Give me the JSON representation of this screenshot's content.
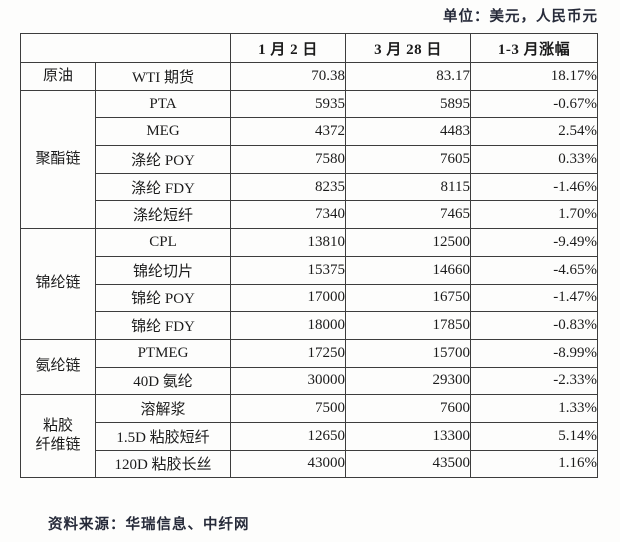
{
  "unit_note": "单位：美元，人民币元",
  "source_note": "资料来源：华瑞信息、中纤网",
  "table": {
    "col_headers": [
      "1 月 2 日",
      "3 月 28 日",
      "1-3 月涨幅"
    ],
    "groups": [
      {
        "category": "原油",
        "rows": [
          {
            "name": "WTI 期货",
            "jan2": "70.38",
            "mar28": "83.17",
            "change": "18.17%"
          }
        ]
      },
      {
        "category": "聚酯链",
        "rows": [
          {
            "name": "PTA",
            "jan2": "5935",
            "mar28": "5895",
            "change": "-0.67%"
          },
          {
            "name": "MEG",
            "jan2": "4372",
            "mar28": "4483",
            "change": "2.54%"
          },
          {
            "name": "涤纶 POY",
            "jan2": "7580",
            "mar28": "7605",
            "change": "0.33%"
          },
          {
            "name": "涤纶 FDY",
            "jan2": "8235",
            "mar28": "8115",
            "change": "-1.46%"
          },
          {
            "name": "涤纶短纤",
            "jan2": "7340",
            "mar28": "7465",
            "change": "1.70%"
          }
        ]
      },
      {
        "category": "锦纶链",
        "rows": [
          {
            "name": "CPL",
            "jan2": "13810",
            "mar28": "12500",
            "change": "-9.49%"
          },
          {
            "name": "锦纶切片",
            "jan2": "15375",
            "mar28": "14660",
            "change": "-4.65%"
          },
          {
            "name": "锦纶 POY",
            "jan2": "17000",
            "mar28": "16750",
            "change": "-1.47%"
          },
          {
            "name": "锦纶 FDY",
            "jan2": "18000",
            "mar28": "17850",
            "change": "-0.83%"
          }
        ]
      },
      {
        "category": "氨纶链",
        "rows": [
          {
            "name": "PTMEG",
            "jan2": "17250",
            "mar28": "15700",
            "change": "-8.99%"
          },
          {
            "name": "40D 氨纶",
            "jan2": "30000",
            "mar28": "29300",
            "change": "-2.33%"
          }
        ]
      },
      {
        "category": "粘胶\n纤维链",
        "rows": [
          {
            "name": "溶解浆",
            "jan2": "7500",
            "mar28": "7600",
            "change": "1.33%"
          },
          {
            "name": "1.5D 粘胶短纤",
            "jan2": "12650",
            "mar28": "13300",
            "change": "5.14%"
          },
          {
            "name": "120D 粘胶长丝",
            "jan2": "43000",
            "mar28": "43500",
            "change": "1.16%"
          }
        ]
      }
    ]
  },
  "colors": {
    "border": "#3d3d3d",
    "text": "#1b1b1b",
    "note_text": "#272b3a",
    "background": "#fdfdfc"
  }
}
